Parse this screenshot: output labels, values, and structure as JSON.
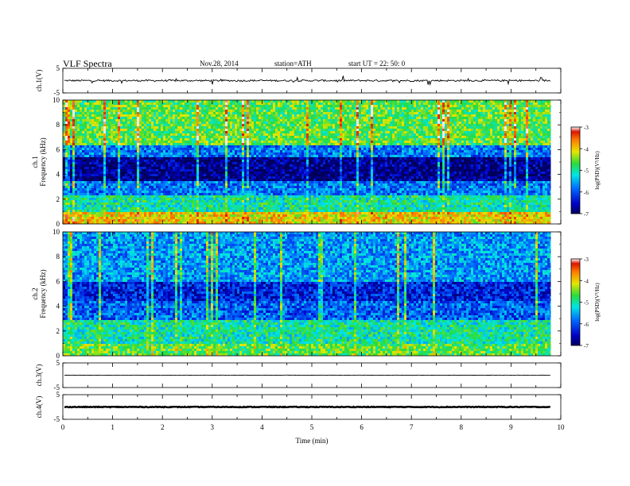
{
  "header": {
    "title": "VLF  Spectra",
    "date": "Nov.28, 2014",
    "station": "station=ATH",
    "start": "start  UT  =   22: 50: 0"
  },
  "chart_data": [
    {
      "type": "line",
      "ylabel": "ch.1(V)",
      "ylim": [
        -5,
        5
      ],
      "yticks": [
        "5",
        "-5"
      ],
      "description_level": "noisy trace around 0 V, amplitude roughly ±1 V with spikes to ±2 V",
      "baseline": 0.0,
      "noise": 0.35,
      "spikes": 1.8
    },
    {
      "type": "heatmap",
      "ylabel": "ch.1\nFrequency  (kHz)",
      "ylim": [
        0,
        10
      ],
      "yticks": [
        "0",
        "2",
        "4",
        "6",
        "8",
        "10"
      ],
      "colorbar": {
        "label": "log(PSD)(V²/Hz)",
        "range": [
          -7,
          -3
        ],
        "ticks": [
          "-3",
          "-4",
          "-5",
          "-6",
          "-7"
        ]
      },
      "bands": [
        {
          "from": 0,
          "to": 1,
          "level": -4.0
        },
        {
          "from": 1,
          "to": 2.5,
          "level": -5.0
        },
        {
          "from": 2.5,
          "to": 3.5,
          "level": -5.8
        },
        {
          "from": 3.5,
          "to": 5.5,
          "level": -6.8
        },
        {
          "from": 5.5,
          "to": 6.5,
          "level": -5.8
        },
        {
          "from": 6.5,
          "to": 10,
          "level": -4.6
        }
      ]
    },
    {
      "type": "heatmap",
      "ylabel": "ch.2\nFrequency  (kHz)",
      "ylim": [
        0,
        10
      ],
      "yticks": [
        "0",
        "2",
        "4",
        "6",
        "8",
        "10"
      ],
      "colorbar": {
        "label": "log(PSD)(V²/Hz)",
        "range": [
          -7,
          -3
        ],
        "ticks": [
          "-3",
          "-4",
          "-5",
          "-6",
          "-7"
        ]
      },
      "bands": [
        {
          "from": 0,
          "to": 1,
          "level": -4.6
        },
        {
          "from": 1,
          "to": 3,
          "level": -5.0
        },
        {
          "from": 3,
          "to": 4.5,
          "level": -5.9
        },
        {
          "from": 4.5,
          "to": 6,
          "level": -6.3
        },
        {
          "from": 6,
          "to": 10,
          "level": -5.6
        }
      ]
    },
    {
      "type": "line",
      "ylabel": "ch.3(V)",
      "ylim": [
        -5,
        5
      ],
      "yticks": [
        "5",
        "-5"
      ],
      "baseline": 0.0,
      "noise": 0.08,
      "spikes": 0.0
    },
    {
      "type": "line",
      "ylabel": "ch.4(V)",
      "ylim": [
        -5,
        5
      ],
      "yticks": [
        "5",
        "-5"
      ],
      "baseline": 0.0,
      "noise": 0.15,
      "spikes": 0.0
    }
  ],
  "xaxis": {
    "label": "Time  (min)",
    "xlim": [
      0,
      10
    ],
    "data_end": 9.8,
    "ticks": [
      "0",
      "1",
      "2",
      "3",
      "4",
      "5",
      "6",
      "7",
      "8",
      "9",
      "10"
    ]
  }
}
